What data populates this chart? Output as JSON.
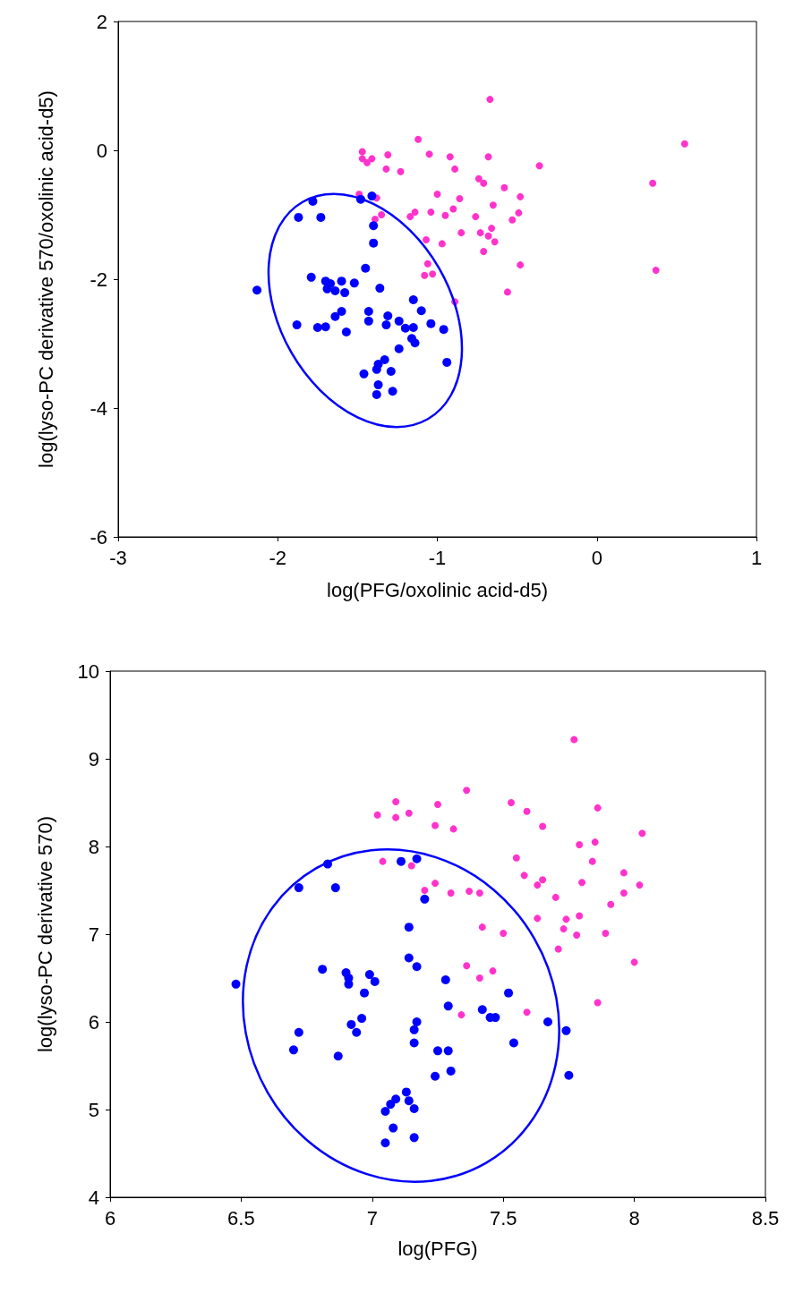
{
  "chart_data": [
    {
      "type": "scatter",
      "xlabel": "log(PFG/oxolinic acid-d5)",
      "ylabel": "log(lyso-PC derivative 570/oxolinic acid-d5)",
      "xlim": [
        -3,
        1
      ],
      "xticks": [
        -3,
        -2,
        -1,
        0,
        1
      ],
      "ylim": [
        -6,
        2
      ],
      "yticks": [
        -6,
        -4,
        -2,
        0,
        2
      ],
      "marker": "circle",
      "series": [
        {
          "color": "#ff33cc",
          "x": [
            -0.67,
            -1.12,
            -1.47,
            -1.47,
            -1.41,
            -1.44,
            -1.31,
            -1.32,
            -1.23,
            -1.05,
            -0.92,
            -0.89,
            -0.68,
            -0.36,
            0.55,
            0.35,
            0.37,
            -0.74,
            -0.71,
            -0.58,
            -0.48,
            -1.0,
            -0.86,
            -0.65,
            -0.9,
            -0.95,
            -1.04,
            -1.14,
            -1.17,
            -0.76,
            -0.49,
            -0.53,
            -0.66,
            -0.73,
            -0.68,
            -0.64,
            -0.71,
            -0.85,
            -1.07,
            -0.97,
            -0.48,
            -1.06,
            -1.08,
            -1.03,
            -0.56,
            -1.49,
            -1.38,
            -1.35,
            -1.39,
            -0.89
          ],
          "values": [
            0.79,
            0.17,
            -0.02,
            -0.13,
            -0.13,
            -0.19,
            -0.07,
            -0.29,
            -0.33,
            -0.06,
            -0.1,
            -0.29,
            -0.1,
            -0.24,
            0.1,
            -0.51,
            -1.86,
            -0.44,
            -0.51,
            -0.58,
            -0.72,
            -0.68,
            -0.75,
            -0.85,
            -0.91,
            -1.01,
            -0.96,
            -0.96,
            -1.03,
            -1.03,
            -0.97,
            -1.08,
            -1.21,
            -1.28,
            -1.33,
            -1.42,
            -1.57,
            -1.28,
            -1.39,
            -1.45,
            -1.78,
            -1.76,
            -1.94,
            -1.92,
            -2.2,
            -0.68,
            -0.74,
            -1.0,
            -1.07,
            -2.35
          ]
        },
        {
          "color": "#0000ff",
          "x": [
            -2.13,
            -1.87,
            -1.78,
            -1.73,
            -1.48,
            -1.41,
            -1.4,
            -1.4,
            -1.45,
            -1.79,
            -1.7,
            -1.67,
            -1.69,
            -1.64,
            -1.6,
            -1.58,
            -1.52,
            -1.36,
            -1.88,
            -1.75,
            -1.7,
            -1.57,
            -1.64,
            -1.6,
            -1.43,
            -1.43,
            -1.31,
            -1.32,
            -1.24,
            -1.2,
            -1.15,
            -1.16,
            -1.14,
            -1.24,
            -1.15,
            -1.1,
            -1.04,
            -0.96,
            -0.94,
            -1.33,
            -1.37,
            -1.38,
            -1.46,
            -1.29,
            -1.37,
            -1.38,
            -1.28
          ],
          "values": [
            -2.17,
            -1.04,
            -0.79,
            -1.04,
            -0.76,
            -0.71,
            -1.17,
            -1.44,
            -1.83,
            -1.97,
            -2.03,
            -2.07,
            -2.15,
            -2.18,
            -2.03,
            -2.21,
            -2.06,
            -2.14,
            -2.71,
            -2.75,
            -2.74,
            -2.82,
            -2.58,
            -2.5,
            -2.5,
            -2.65,
            -2.57,
            -2.71,
            -2.65,
            -2.76,
            -2.75,
            -2.92,
            -2.99,
            -3.08,
            -2.32,
            -2.49,
            -2.69,
            -2.78,
            -3.29,
            -3.25,
            -3.32,
            -3.4,
            -3.47,
            -3.43,
            -3.64,
            -3.79,
            -3.74
          ]
        }
      ]
    },
    {
      "type": "scatter",
      "xlabel": "log(PFG)",
      "ylabel": "log(lyso-PC derivative 570)",
      "xlim": [
        6,
        8.5
      ],
      "xticks": [
        6,
        6.5,
        7,
        7.5,
        8,
        8.5
      ],
      "ylim": [
        4,
        10
      ],
      "yticks": [
        4,
        5,
        6,
        7,
        8,
        9,
        10
      ],
      "marker": "circle",
      "series": [
        {
          "color": "#ff33cc",
          "x": [
            7.77,
            7.36,
            7.09,
            7.02,
            7.09,
            7.14,
            7.25,
            7.24,
            7.31,
            7.53,
            7.59,
            7.65,
            7.86,
            8.03,
            7.79,
            7.85,
            7.84,
            7.55,
            7.58,
            7.65,
            7.63,
            7.8,
            7.96,
            8.02,
            7.96,
            7.91,
            7.7,
            7.63,
            7.74,
            7.79,
            7.73,
            7.78,
            7.89,
            7.71,
            8.0,
            7.04,
            7.15,
            7.2,
            7.24,
            7.3,
            7.37,
            7.41,
            7.42,
            7.5,
            7.36,
            7.46,
            7.41,
            7.34,
            7.59,
            7.86
          ],
          "values": [
            9.22,
            8.64,
            8.51,
            8.36,
            8.33,
            8.38,
            8.48,
            8.24,
            8.2,
            8.5,
            8.4,
            8.23,
            8.44,
            8.15,
            8.02,
            8.05,
            7.83,
            7.87,
            7.67,
            7.62,
            7.56,
            7.59,
            7.7,
            7.56,
            7.47,
            7.34,
            7.42,
            7.18,
            7.17,
            7.21,
            7.06,
            6.99,
            7.01,
            6.83,
            6.68,
            7.83,
            7.78,
            7.5,
            7.58,
            7.47,
            7.49,
            7.47,
            7.08,
            7.01,
            6.64,
            6.58,
            6.5,
            6.08,
            6.11,
            6.22
          ]
        },
        {
          "color": "#0000ff",
          "x": [
            6.48,
            6.83,
            6.72,
            6.86,
            7.11,
            7.17,
            7.2,
            7.14,
            7.14,
            7.17,
            6.81,
            6.9,
            6.91,
            6.91,
            6.99,
            7.01,
            6.97,
            7.28,
            7.52,
            7.29,
            7.42,
            7.45,
            7.47,
            7.67,
            7.74,
            7.75,
            7.54,
            7.17,
            7.16,
            7.16,
            6.96,
            6.92,
            6.94,
            6.72,
            6.7,
            6.87,
            7.25,
            7.29,
            7.3,
            7.24,
            7.13,
            7.14,
            7.16,
            7.09,
            7.07,
            7.05,
            7.08,
            7.16,
            7.05
          ],
          "values": [
            6.43,
            7.8,
            7.53,
            7.53,
            7.83,
            7.86,
            7.4,
            7.08,
            6.73,
            6.63,
            6.6,
            6.56,
            6.5,
            6.43,
            6.54,
            6.46,
            6.33,
            6.48,
            6.33,
            6.18,
            6.14,
            6.05,
            6.05,
            6.0,
            5.9,
            5.39,
            5.76,
            6.0,
            5.91,
            5.76,
            6.04,
            5.97,
            5.88,
            5.88,
            5.68,
            5.61,
            5.67,
            5.67,
            5.44,
            5.38,
            5.2,
            5.1,
            5.01,
            5.12,
            5.06,
            4.98,
            4.79,
            4.68,
            4.62
          ]
        }
      ]
    }
  ]
}
